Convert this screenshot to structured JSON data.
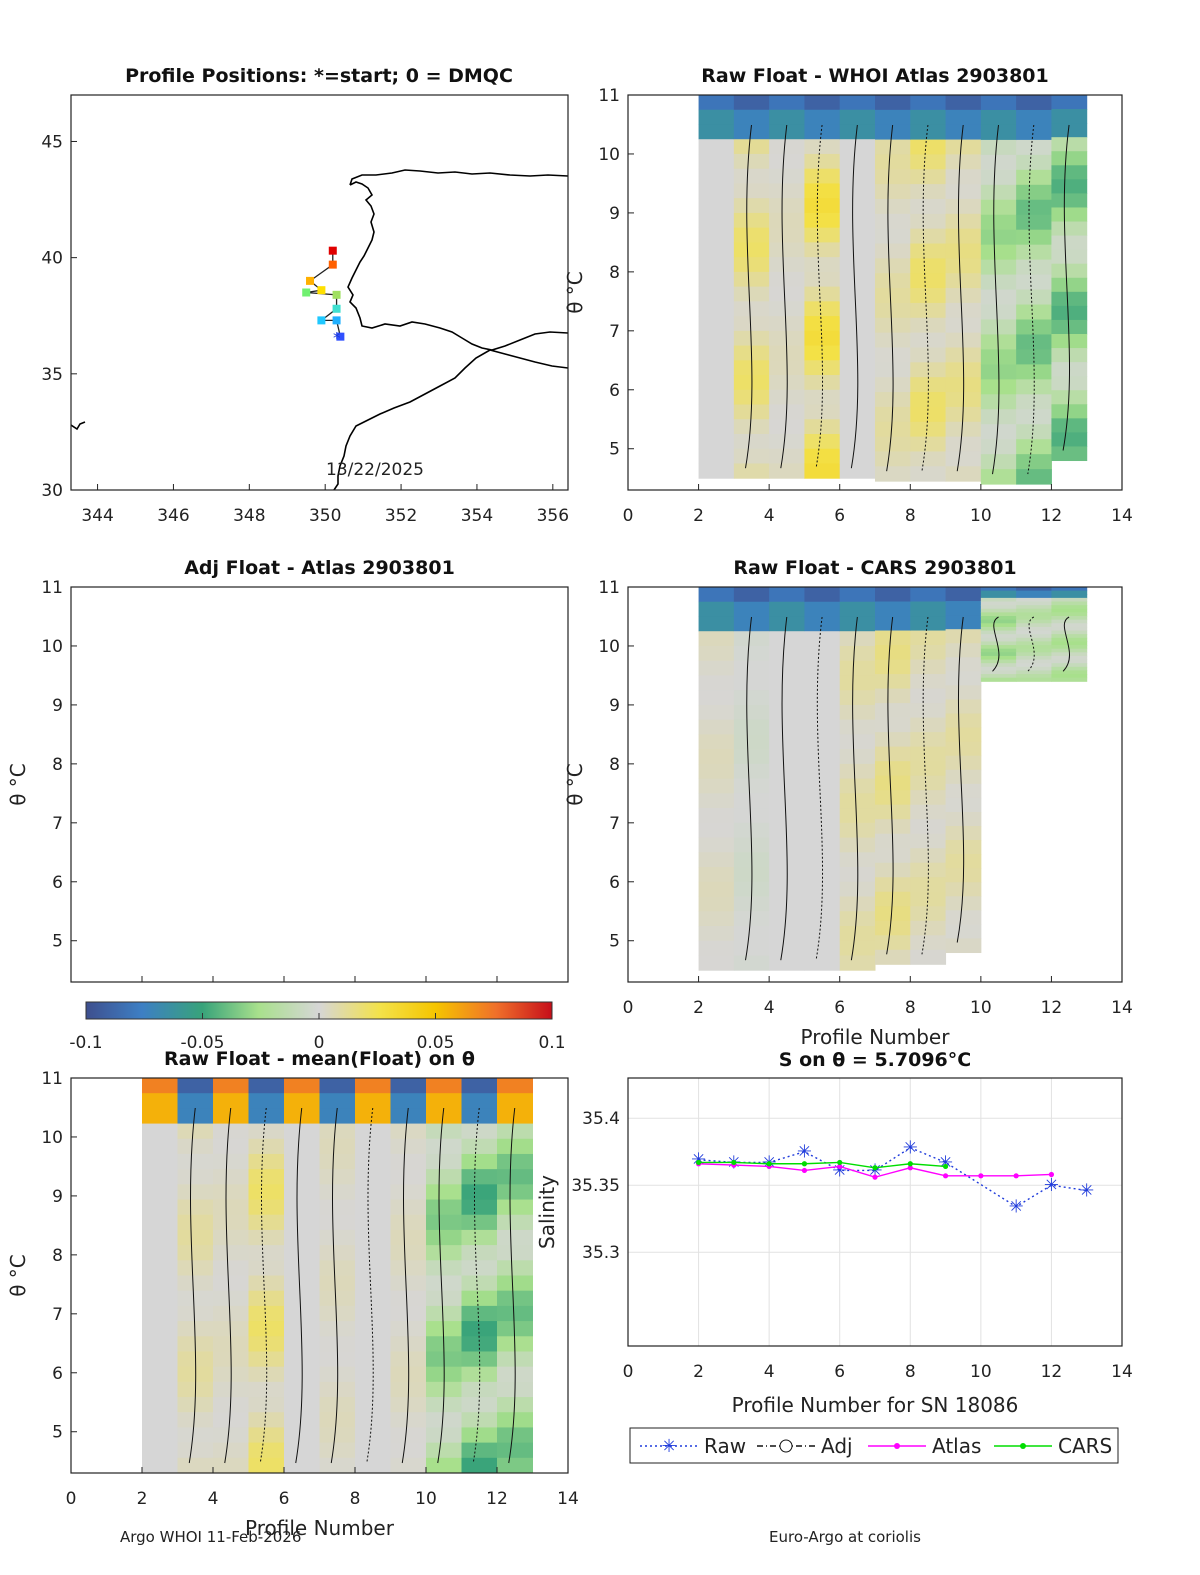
{
  "footer": {
    "left": "Argo WHOI 11-Feb-2026",
    "right": "Euro-Argo at coriolis"
  },
  "colors": {
    "raw": "#1f3bdb",
    "adj": "#111111",
    "atlas": "#ff00ff",
    "cars": "#00dd00",
    "coast": "#000000",
    "grey": "#d4d4d4"
  },
  "colorbar": {
    "min": -0.1,
    "max": 0.1,
    "ticks": [
      "-0.1",
      "-0.05",
      "0",
      "0.05",
      "0.1"
    ],
    "colormap": "blue-green-grey-yellow-red"
  },
  "chart_data": [
    {
      "id": "map",
      "type": "scatter",
      "title": "Profile Positions: *=start; 0 = DMQC",
      "annotation": "13/22/2025",
      "xlim": [
        343.3,
        356.4
      ],
      "ylim": [
        30,
        47
      ],
      "xticks": [
        "344",
        "346",
        "348",
        "350",
        "352",
        "354",
        "356"
      ],
      "yticks": [
        "30",
        "35",
        "40",
        "45"
      ],
      "points": [
        {
          "x": 350.4,
          "y": 36.6,
          "color": "#3050ff"
        },
        {
          "x": 350.3,
          "y": 37.3,
          "color": "#20b0ff"
        },
        {
          "x": 349.9,
          "y": 37.3,
          "color": "#20c8ff"
        },
        {
          "x": 350.3,
          "y": 37.8,
          "color": "#40e0d0"
        },
        {
          "x": 350.3,
          "y": 38.4,
          "color": "#a0e060"
        },
        {
          "x": 349.5,
          "y": 38.5,
          "color": "#70f070"
        },
        {
          "x": 349.9,
          "y": 38.6,
          "color": "#ffe000"
        },
        {
          "x": 349.6,
          "y": 39.0,
          "color": "#ffb000"
        },
        {
          "x": 350.2,
          "y": 39.7,
          "color": "#ff6000"
        },
        {
          "x": 350.2,
          "y": 40.3,
          "color": "#e00000"
        }
      ]
    },
    {
      "id": "whoi",
      "type": "heatmap",
      "title": "Raw Float - WHOI Atlas  2903801",
      "ylabel": "θ °C",
      "xlabel": "",
      "xlim": [
        0,
        14
      ],
      "ylim": [
        4.3,
        11
      ],
      "xticks": [
        "0",
        "2",
        "4",
        "6",
        "8",
        "10",
        "12",
        "14"
      ],
      "yticks": [
        "5",
        "6",
        "7",
        "8",
        "9",
        "10",
        "11"
      ],
      "profiles": [
        2,
        3,
        4,
        5,
        6,
        7,
        8,
        9,
        10,
        11,
        12
      ],
      "bottom_theta": [
        4.5,
        4.5,
        4.5,
        4.5,
        4.5,
        4.45,
        4.45,
        4.45,
        4.4,
        4.4,
        4.8
      ],
      "column_values": [
        0.0,
        0.02,
        0.005,
        0.03,
        0.0,
        0.01,
        0.02,
        0.015,
        -0.03,
        -0.04,
        -0.045
      ]
    },
    {
      "id": "adj",
      "type": "heatmap",
      "title": "Adj Float - Atlas  2903801",
      "ylabel": "θ °C",
      "xlim": [
        0,
        14
      ],
      "ylim": [
        4.3,
        11
      ],
      "yticks": [
        "5",
        "6",
        "7",
        "8",
        "9",
        "10",
        "11"
      ],
      "profiles": []
    },
    {
      "id": "cars",
      "type": "heatmap",
      "title": "Raw Float - CARS  2903801",
      "ylabel": "θ °C",
      "xlabel": "Profile Number",
      "xlim": [
        0,
        14
      ],
      "ylim": [
        4.3,
        11
      ],
      "xticks": [
        "0",
        "2",
        "4",
        "6",
        "8",
        "10",
        "12",
        "14"
      ],
      "yticks": [
        "5",
        "6",
        "7",
        "8",
        "9",
        "10",
        "11"
      ],
      "profiles": [
        2,
        3,
        4,
        5,
        6,
        7,
        8,
        9,
        10,
        11,
        12
      ],
      "bottom_theta": [
        4.5,
        4.5,
        4.5,
        4.5,
        4.5,
        4.6,
        4.6,
        4.8,
        9.4,
        9.4,
        9.4
      ],
      "column_values": [
        0.005,
        -0.005,
        0.0,
        0.0,
        0.01,
        0.015,
        0.01,
        0.01,
        -0.03,
        -0.02,
        -0.025
      ]
    },
    {
      "id": "mean",
      "type": "heatmap",
      "title": "Raw Float - mean(Float) on θ",
      "ylabel": "θ °C",
      "xlabel": "Profile Number",
      "xlim": [
        0,
        14
      ],
      "ylim": [
        4.3,
        11
      ],
      "xticks": [
        "0",
        "2",
        "4",
        "6",
        "8",
        "10",
        "12",
        "14"
      ],
      "yticks": [
        "5",
        "6",
        "7",
        "8",
        "9",
        "10",
        "11"
      ],
      "profiles": [
        2,
        3,
        4,
        5,
        6,
        7,
        8,
        9,
        10,
        11,
        12
      ],
      "bottom_theta": [
        4.3,
        4.3,
        4.3,
        4.3,
        4.3,
        4.3,
        4.3,
        4.3,
        4.3,
        4.3,
        4.3
      ],
      "column_values": [
        0.0,
        0.01,
        0.005,
        0.02,
        0.0,
        0.005,
        0.0,
        0.005,
        -0.035,
        -0.05,
        -0.04
      ]
    },
    {
      "id": "salinity",
      "type": "line",
      "title": "S on θ = 5.7096°C",
      "xlabel": "Profile Number for SN 18086",
      "ylabel": "Salinity",
      "xlim": [
        0,
        14
      ],
      "ylim": [
        35.23,
        35.43
      ],
      "xticks": [
        "0",
        "2",
        "4",
        "6",
        "8",
        "10",
        "12",
        "14"
      ],
      "yticks": [
        "35.3",
        "35.35",
        "35.4"
      ],
      "legend": [
        "Raw",
        "Adj",
        "Atlas",
        "CARS"
      ],
      "legend_position": "bottom",
      "series": [
        {
          "name": "Raw",
          "x": [
            2,
            3,
            4,
            5,
            6,
            7,
            8,
            9,
            11,
            12,
            13
          ],
          "y": [
            35.369,
            35.367,
            35.367,
            35.375,
            35.361,
            35.361,
            35.378,
            35.367,
            35.334,
            35.35,
            35.346
          ]
        },
        {
          "name": "Atlas",
          "x": [
            2,
            3,
            4,
            5,
            6,
            7,
            8,
            9,
            10,
            11,
            12
          ],
          "y": [
            35.366,
            35.365,
            35.364,
            35.361,
            35.364,
            35.356,
            35.363,
            35.357,
            35.357,
            35.357,
            35.358
          ]
        },
        {
          "name": "CARS",
          "x": [
            2,
            3,
            4,
            5,
            6,
            7,
            8,
            9
          ],
          "y": [
            35.367,
            35.367,
            35.366,
            35.366,
            35.367,
            35.363,
            35.366,
            35.364
          ]
        }
      ]
    }
  ]
}
